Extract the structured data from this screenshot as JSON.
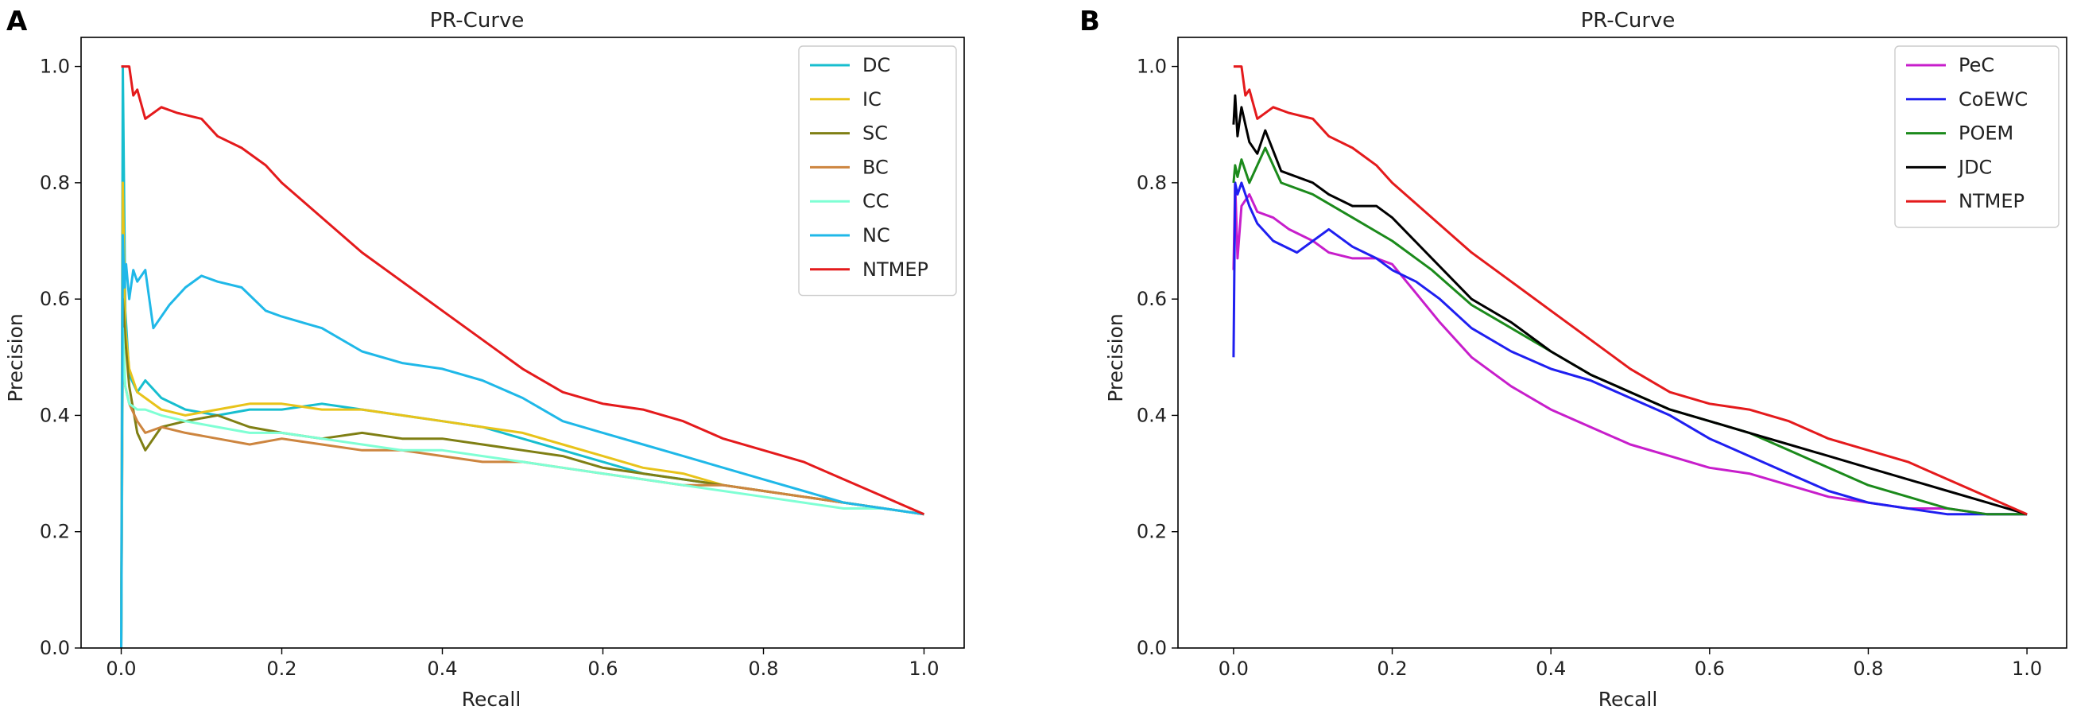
{
  "panels": [
    {
      "label": "A",
      "legend_placement": "top-right",
      "chart_data": {
        "type": "line",
        "title": "PR-Curve",
        "xlabel": "Recall",
        "ylabel": "Precision",
        "xlim": [
          -0.05,
          1.05
        ],
        "ylim": [
          0.0,
          1.05
        ],
        "xticks": [
          0.0,
          0.2,
          0.4,
          0.6,
          0.8,
          1.0
        ],
        "yticks": [
          0.0,
          0.2,
          0.4,
          0.6,
          0.8,
          1.0
        ],
        "xtick_labels": [
          "0.0",
          "0.2",
          "0.4",
          "0.6",
          "0.8",
          "1.0"
        ],
        "ytick_labels": [
          "0.0",
          "0.2",
          "0.4",
          "0.6",
          "0.8",
          "1.0"
        ],
        "series": [
          {
            "name": "DC",
            "color": "#17becf",
            "x": [
              0,
              0.002,
              0.005,
              0.01,
              0.02,
              0.03,
              0.05,
              0.08,
              0.12,
              0.16,
              0.2,
              0.25,
              0.3,
              0.35,
              0.4,
              0.45,
              0.5,
              0.55,
              0.6,
              0.65,
              0.7,
              0.75,
              0.8,
              0.85,
              0.9,
              0.95,
              1.0
            ],
            "y": [
              0.0,
              1.0,
              0.58,
              0.47,
              0.44,
              0.46,
              0.43,
              0.41,
              0.4,
              0.41,
              0.41,
              0.42,
              0.41,
              0.4,
              0.39,
              0.38,
              0.36,
              0.34,
              0.32,
              0.3,
              0.29,
              0.28,
              0.27,
              0.26,
              0.25,
              0.24,
              0.23
            ]
          },
          {
            "name": "IC",
            "color": "#e8c31a",
            "x": [
              0,
              0.002,
              0.005,
              0.01,
              0.02,
              0.03,
              0.05,
              0.08,
              0.12,
              0.16,
              0.2,
              0.25,
              0.3,
              0.35,
              0.4,
              0.45,
              0.5,
              0.55,
              0.6,
              0.65,
              0.7,
              0.75,
              0.8,
              0.85,
              0.9,
              0.95,
              1.0
            ],
            "y": [
              0.0,
              0.8,
              0.55,
              0.48,
              0.44,
              0.43,
              0.41,
              0.4,
              0.41,
              0.42,
              0.42,
              0.41,
              0.41,
              0.4,
              0.39,
              0.38,
              0.37,
              0.35,
              0.33,
              0.31,
              0.3,
              0.28,
              0.27,
              0.26,
              0.25,
              0.24,
              0.23
            ]
          },
          {
            "name": "SC",
            "color": "#7f7f14",
            "x": [
              0,
              0.002,
              0.005,
              0.01,
              0.02,
              0.03,
              0.05,
              0.08,
              0.12,
              0.16,
              0.2,
              0.25,
              0.3,
              0.35,
              0.4,
              0.45,
              0.5,
              0.55,
              0.6,
              0.65,
              0.7,
              0.75,
              0.8,
              0.85,
              0.9,
              0.95,
              1.0
            ],
            "y": [
              0.0,
              0.6,
              0.53,
              0.45,
              0.37,
              0.34,
              0.38,
              0.39,
              0.4,
              0.38,
              0.37,
              0.36,
              0.37,
              0.36,
              0.36,
              0.35,
              0.34,
              0.33,
              0.31,
              0.3,
              0.29,
              0.28,
              0.27,
              0.26,
              0.25,
              0.24,
              0.23
            ]
          },
          {
            "name": "BC",
            "color": "#cd853f",
            "x": [
              0,
              0.002,
              0.005,
              0.01,
              0.02,
              0.03,
              0.05,
              0.08,
              0.12,
              0.16,
              0.2,
              0.25,
              0.3,
              0.35,
              0.4,
              0.45,
              0.5,
              0.55,
              0.6,
              0.65,
              0.7,
              0.75,
              0.8,
              0.85,
              0.9,
              0.95,
              1.0
            ],
            "y": [
              0.0,
              0.5,
              0.45,
              0.42,
              0.39,
              0.37,
              0.38,
              0.37,
              0.36,
              0.35,
              0.36,
              0.35,
              0.34,
              0.34,
              0.33,
              0.32,
              0.32,
              0.31,
              0.3,
              0.29,
              0.28,
              0.28,
              0.27,
              0.26,
              0.25,
              0.24,
              0.23
            ]
          },
          {
            "name": "CC",
            "color": "#7fffd4",
            "x": [
              0,
              0.002,
              0.005,
              0.01,
              0.02,
              0.03,
              0.05,
              0.08,
              0.12,
              0.16,
              0.2,
              0.25,
              0.3,
              0.35,
              0.4,
              0.45,
              0.5,
              0.55,
              0.6,
              0.65,
              0.7,
              0.75,
              0.8,
              0.85,
              0.9,
              0.95,
              1.0
            ],
            "y": [
              0.0,
              0.55,
              0.45,
              0.42,
              0.41,
              0.41,
              0.4,
              0.39,
              0.38,
              0.37,
              0.37,
              0.36,
              0.35,
              0.34,
              0.34,
              0.33,
              0.32,
              0.31,
              0.3,
              0.29,
              0.28,
              0.27,
              0.26,
              0.25,
              0.24,
              0.24,
              0.23
            ]
          },
          {
            "name": "NC",
            "color": "#1fb8e8",
            "x": [
              0,
              0.002,
              0.004,
              0.006,
              0.01,
              0.015,
              0.02,
              0.03,
              0.04,
              0.06,
              0.08,
              0.1,
              0.12,
              0.15,
              0.18,
              0.2,
              0.25,
              0.3,
              0.35,
              0.4,
              0.45,
              0.5,
              0.55,
              0.6,
              0.65,
              0.7,
              0.75,
              0.8,
              0.85,
              0.9,
              0.95,
              1.0
            ],
            "y": [
              0.0,
              0.71,
              0.62,
              0.66,
              0.6,
              0.65,
              0.63,
              0.65,
              0.55,
              0.59,
              0.62,
              0.64,
              0.63,
              0.62,
              0.58,
              0.57,
              0.55,
              0.51,
              0.49,
              0.48,
              0.46,
              0.43,
              0.39,
              0.37,
              0.35,
              0.33,
              0.31,
              0.29,
              0.27,
              0.25,
              0.24,
              0.23
            ]
          },
          {
            "name": "NTMEP",
            "color": "#e41a1c",
            "x": [
              0,
              0.002,
              0.005,
              0.01,
              0.015,
              0.02,
              0.03,
              0.05,
              0.07,
              0.1,
              0.12,
              0.15,
              0.18,
              0.2,
              0.25,
              0.3,
              0.35,
              0.4,
              0.45,
              0.5,
              0.55,
              0.6,
              0.65,
              0.7,
              0.75,
              0.8,
              0.85,
              0.9,
              0.95,
              1.0
            ],
            "y": [
              1.0,
              1.0,
              1.0,
              1.0,
              0.95,
              0.96,
              0.91,
              0.93,
              0.92,
              0.91,
              0.88,
              0.86,
              0.83,
              0.8,
              0.74,
              0.68,
              0.63,
              0.58,
              0.53,
              0.48,
              0.44,
              0.42,
              0.41,
              0.39,
              0.36,
              0.34,
              0.32,
              0.29,
              0.26,
              0.23
            ]
          }
        ]
      }
    },
    {
      "label": "B",
      "legend_placement": "top-right",
      "chart_data": {
        "type": "line",
        "title": "PR-Curve",
        "xlabel": "Recall",
        "ylabel": "Precision",
        "xlim": [
          -0.07,
          1.05
        ],
        "ylim": [
          0.0,
          1.05
        ],
        "xticks": [
          0.0,
          0.2,
          0.4,
          0.6,
          0.8,
          1.0
        ],
        "yticks": [
          0.0,
          0.2,
          0.4,
          0.6,
          0.8,
          1.0
        ],
        "xtick_labels": [
          "0.0",
          "0.2",
          "0.4",
          "0.6",
          "0.8",
          "1.0"
        ],
        "ytick_labels": [
          "0.0",
          "0.2",
          "0.4",
          "0.6",
          "0.8",
          "1.0"
        ],
        "series": [
          {
            "name": "PeC",
            "color": "#c71ecb",
            "x": [
              0,
              0.002,
              0.005,
              0.01,
              0.02,
              0.03,
              0.05,
              0.07,
              0.1,
              0.12,
              0.15,
              0.18,
              0.2,
              0.23,
              0.26,
              0.3,
              0.35,
              0.4,
              0.45,
              0.5,
              0.55,
              0.6,
              0.65,
              0.7,
              0.75,
              0.8,
              0.85,
              0.9,
              0.95,
              1.0
            ],
            "y": [
              0.65,
              0.8,
              0.67,
              0.76,
              0.78,
              0.75,
              0.74,
              0.72,
              0.7,
              0.68,
              0.67,
              0.67,
              0.66,
              0.61,
              0.56,
              0.5,
              0.45,
              0.41,
              0.38,
              0.35,
              0.33,
              0.31,
              0.3,
              0.28,
              0.26,
              0.25,
              0.24,
              0.24,
              0.23,
              0.23
            ]
          },
          {
            "name": "CoEWC",
            "color": "#1f1ff0",
            "x": [
              0,
              0.002,
              0.005,
              0.01,
              0.02,
              0.03,
              0.05,
              0.08,
              0.1,
              0.12,
              0.15,
              0.18,
              0.2,
              0.23,
              0.26,
              0.3,
              0.35,
              0.4,
              0.45,
              0.5,
              0.55,
              0.6,
              0.65,
              0.7,
              0.75,
              0.8,
              0.85,
              0.9,
              0.95,
              1.0
            ],
            "y": [
              0.5,
              0.8,
              0.78,
              0.8,
              0.76,
              0.73,
              0.7,
              0.68,
              0.7,
              0.72,
              0.69,
              0.67,
              0.65,
              0.63,
              0.6,
              0.55,
              0.51,
              0.48,
              0.46,
              0.43,
              0.4,
              0.36,
              0.33,
              0.3,
              0.27,
              0.25,
              0.24,
              0.23,
              0.23,
              0.23
            ]
          },
          {
            "name": "POEM",
            "color": "#1b8a1b",
            "x": [
              0,
              0.002,
              0.005,
              0.01,
              0.02,
              0.03,
              0.04,
              0.06,
              0.1,
              0.15,
              0.2,
              0.25,
              0.3,
              0.35,
              0.4,
              0.45,
              0.5,
              0.55,
              0.6,
              0.65,
              0.7,
              0.75,
              0.8,
              0.85,
              0.9,
              0.95,
              1.0
            ],
            "y": [
              0.8,
              0.83,
              0.81,
              0.84,
              0.8,
              0.83,
              0.86,
              0.8,
              0.78,
              0.74,
              0.7,
              0.65,
              0.59,
              0.55,
              0.51,
              0.47,
              0.44,
              0.41,
              0.39,
              0.37,
              0.34,
              0.31,
              0.28,
              0.26,
              0.24,
              0.23,
              0.23
            ]
          },
          {
            "name": "JDC",
            "color": "#000000",
            "x": [
              0,
              0.002,
              0.005,
              0.01,
              0.015,
              0.02,
              0.03,
              0.04,
              0.06,
              0.1,
              0.12,
              0.15,
              0.18,
              0.2,
              0.25,
              0.3,
              0.35,
              0.4,
              0.45,
              0.5,
              0.55,
              0.6,
              0.65,
              0.7,
              0.75,
              0.8,
              0.85,
              0.9,
              0.95,
              1.0
            ],
            "y": [
              0.9,
              0.95,
              0.88,
              0.93,
              0.9,
              0.87,
              0.85,
              0.89,
              0.82,
              0.8,
              0.78,
              0.76,
              0.76,
              0.74,
              0.67,
              0.6,
              0.56,
              0.51,
              0.47,
              0.44,
              0.41,
              0.39,
              0.37,
              0.35,
              0.33,
              0.31,
              0.29,
              0.27,
              0.25,
              0.23
            ]
          },
          {
            "name": "NTMEP",
            "color": "#e41a1c",
            "x": [
              0,
              0.002,
              0.005,
              0.01,
              0.015,
              0.02,
              0.03,
              0.05,
              0.07,
              0.1,
              0.12,
              0.15,
              0.18,
              0.2,
              0.25,
              0.3,
              0.35,
              0.4,
              0.45,
              0.5,
              0.55,
              0.6,
              0.65,
              0.7,
              0.75,
              0.8,
              0.85,
              0.9,
              0.95,
              1.0
            ],
            "y": [
              1.0,
              1.0,
              1.0,
              1.0,
              0.95,
              0.96,
              0.91,
              0.93,
              0.92,
              0.91,
              0.88,
              0.86,
              0.83,
              0.8,
              0.74,
              0.68,
              0.63,
              0.58,
              0.53,
              0.48,
              0.44,
              0.42,
              0.41,
              0.39,
              0.36,
              0.34,
              0.32,
              0.29,
              0.26,
              0.23
            ]
          }
        ]
      }
    }
  ]
}
